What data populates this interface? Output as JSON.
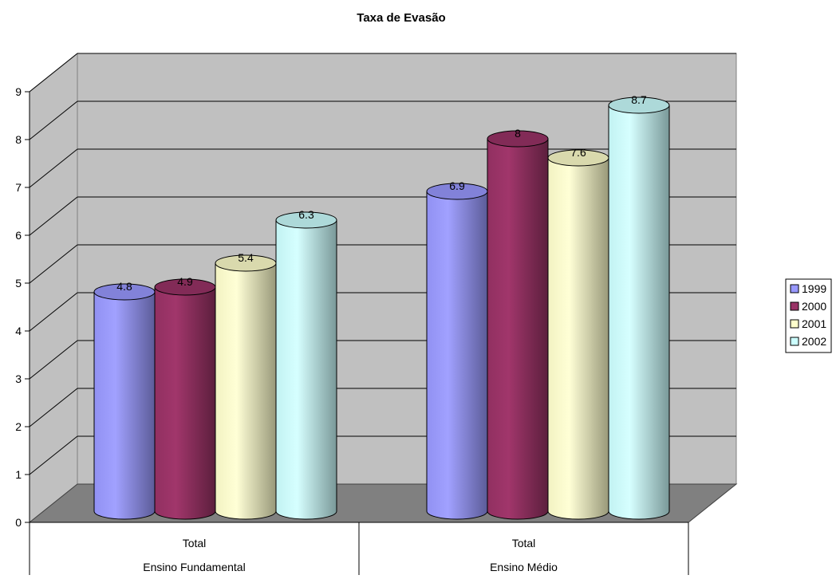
{
  "chart_data": {
    "type": "bar",
    "title": "Taxa de Evasão",
    "xlabel": "",
    "ylabel": "",
    "ylim": [
      0,
      9
    ],
    "yticks": [
      "0",
      "1",
      "2",
      "3",
      "4",
      "5",
      "6",
      "7",
      "8",
      "9"
    ],
    "grid": true,
    "three_d": true,
    "bar_shape": "cylinder",
    "legend_position": "right",
    "groups": [
      {
        "label": "Ensino Fundamental",
        "categories": [
          "Total"
        ]
      },
      {
        "label": "Ensino Médio",
        "categories": [
          "Total"
        ]
      }
    ],
    "series": [
      {
        "name": "1999",
        "color": "#9999ff",
        "values": [
          4.8,
          6.9
        ]
      },
      {
        "name": "2000",
        "color": "#993366",
        "values": [
          4.9,
          8
        ]
      },
      {
        "name": "2001",
        "color": "#ffffcc",
        "values": [
          5.4,
          7.6
        ]
      },
      {
        "name": "2002",
        "color": "#ccffff",
        "values": [
          6.3,
          8.7
        ]
      }
    ]
  }
}
